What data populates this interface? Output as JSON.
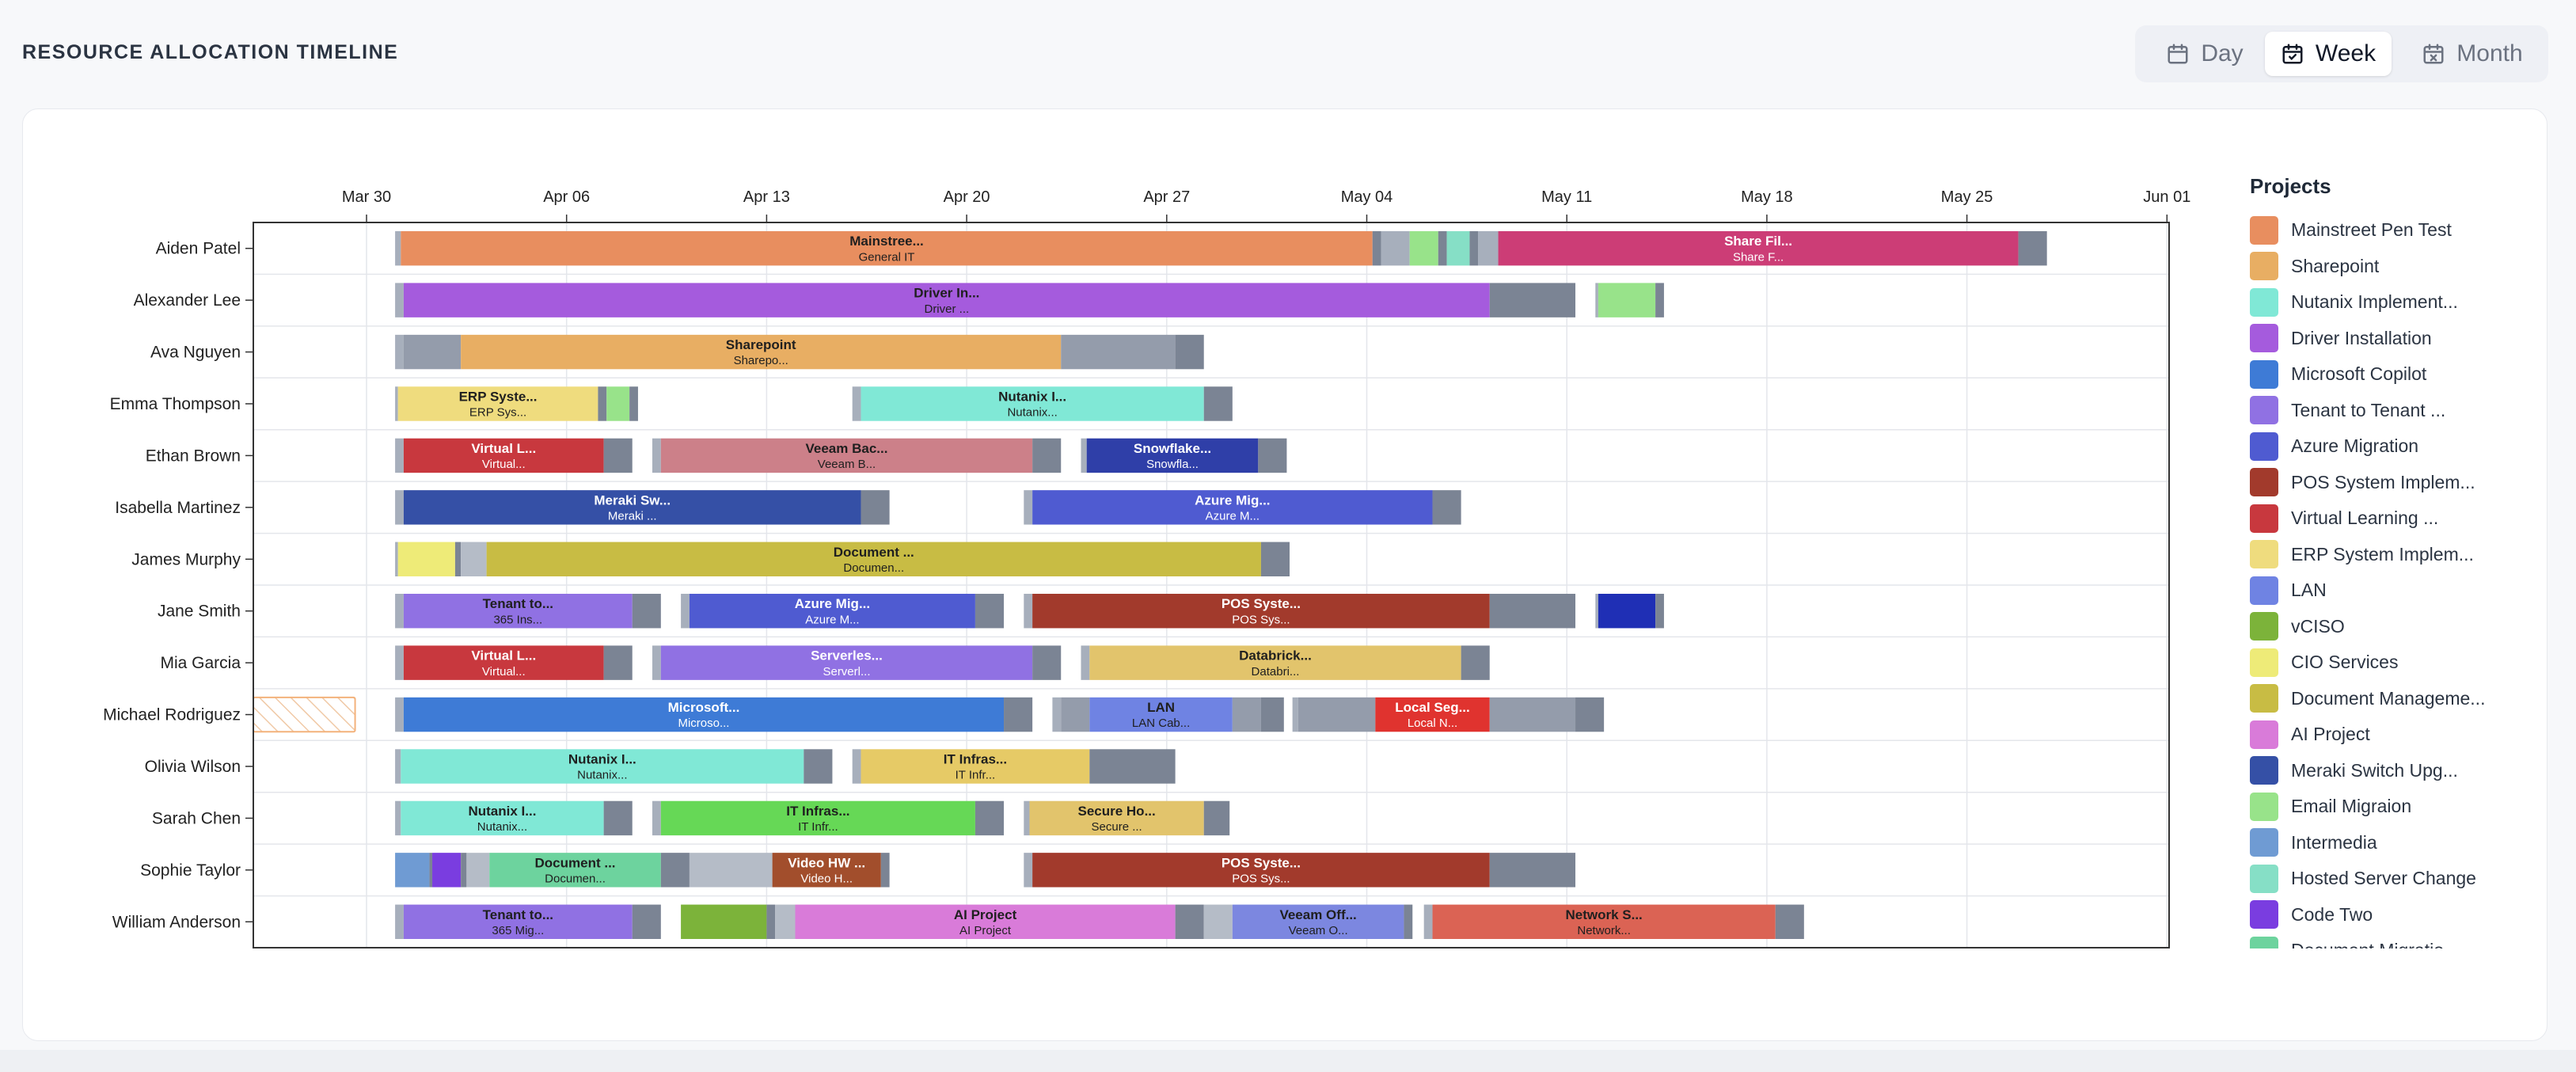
{
  "header": {
    "title": "RESOURCE ALLOCATION TIMELINE"
  },
  "view_toggle": {
    "selected": "Week",
    "options": [
      {
        "label": "Day",
        "icon": "calendar-icon"
      },
      {
        "label": "Week",
        "icon": "calendar-week-icon"
      },
      {
        "label": "Month",
        "icon": "calendar-month-icon"
      }
    ]
  },
  "timeline": {
    "date_ticks": [
      "Mar 30",
      "Apr 06",
      "Apr 13",
      "Apr 20",
      "Apr 27",
      "May 04",
      "May 11",
      "May 18",
      "May 25",
      "Jun 01"
    ],
    "rows": [
      {
        "name": "Aiden Patel",
        "bars": [
          {
            "start": 1.0,
            "end": 1.2,
            "color": "#a7afbc"
          },
          {
            "start": 1.2,
            "end": 35.2,
            "color": "#e88e5f",
            "title": "Mainstree...",
            "sub": "General IT"
          },
          {
            "start": 35.2,
            "end": 35.5,
            "color": "#7b8494"
          },
          {
            "start": 35.5,
            "end": 36.5,
            "color": "#a7afbc"
          },
          {
            "start": 36.5,
            "end": 37.5,
            "color": "#98e38a"
          },
          {
            "start": 37.5,
            "end": 37.8,
            "color": "#7b8494"
          },
          {
            "start": 37.8,
            "end": 38.6,
            "color": "#86dfc6"
          },
          {
            "start": 38.6,
            "end": 38.9,
            "color": "#7b8494"
          },
          {
            "start": 38.9,
            "end": 39.6,
            "color": "#a7afbc"
          },
          {
            "start": 39.6,
            "end": 57.8,
            "color": "#cc3d76",
            "title": "Share Fil...",
            "sub": "Share F...",
            "light": true
          },
          {
            "start": 57.8,
            "end": 58.8,
            "color": "#7b8494"
          }
        ]
      },
      {
        "name": "Alexander Lee",
        "bars": [
          {
            "start": 1.0,
            "end": 1.3,
            "color": "#a7afbc"
          },
          {
            "start": 1.3,
            "end": 39.3,
            "color": "#a55bdd",
            "title": "Driver In...",
            "sub": "Driver ..."
          },
          {
            "start": 39.3,
            "end": 42.3,
            "color": "#7b8494"
          },
          {
            "start": 43.0,
            "end": 43.1,
            "color": "#a7afbc"
          },
          {
            "start": 43.1,
            "end": 45.1,
            "color": "#98e38a"
          },
          {
            "start": 45.1,
            "end": 45.4,
            "color": "#7b8494"
          }
        ]
      },
      {
        "name": "Ava Nguyen",
        "bars": [
          {
            "start": 1.0,
            "end": 1.3,
            "color": "#a7afbc"
          },
          {
            "start": 1.3,
            "end": 3.3,
            "color": "#949cab"
          },
          {
            "start": 3.3,
            "end": 24.3,
            "color": "#e8ae63",
            "title": "Sharepoint",
            "sub": "Sharepo..."
          },
          {
            "start": 24.3,
            "end": 28.3,
            "color": "#949cab"
          },
          {
            "start": 28.3,
            "end": 29.3,
            "color": "#7b8494"
          }
        ]
      },
      {
        "name": "Emma Thompson",
        "bars": [
          {
            "start": 1.0,
            "end": 1.1,
            "color": "#a7afbc"
          },
          {
            "start": 1.1,
            "end": 8.1,
            "color": "#efdc7e",
            "title": "ERP Syste...",
            "sub": "ERP Sys..."
          },
          {
            "start": 8.1,
            "end": 8.4,
            "color": "#7b8494"
          },
          {
            "start": 8.4,
            "end": 9.2,
            "color": "#98e38a"
          },
          {
            "start": 9.2,
            "end": 9.5,
            "color": "#7b8494"
          },
          {
            "start": 17.0,
            "end": 17.3,
            "color": "#a7afbc"
          },
          {
            "start": 17.3,
            "end": 29.3,
            "color": "#80e8d6",
            "title": "Nutanix I...",
            "sub": "Nutanix..."
          },
          {
            "start": 29.3,
            "end": 30.3,
            "color": "#7b8494"
          }
        ]
      },
      {
        "name": "Ethan Brown",
        "bars": [
          {
            "start": 1.0,
            "end": 1.3,
            "color": "#a7afbc"
          },
          {
            "start": 1.3,
            "end": 8.3,
            "color": "#c8383e",
            "title": "Virtual L...",
            "sub": "Virtual...",
            "light": true
          },
          {
            "start": 8.3,
            "end": 9.3,
            "color": "#7b8494"
          },
          {
            "start": 10.0,
            "end": 10.3,
            "color": "#a7afbc"
          },
          {
            "start": 10.3,
            "end": 23.3,
            "color": "#cc8089",
            "title": "Veeam Bac...",
            "sub": "Veeam B..."
          },
          {
            "start": 23.3,
            "end": 24.3,
            "color": "#7b8494"
          },
          {
            "start": 25.0,
            "end": 25.2,
            "color": "#a7afbc"
          },
          {
            "start": 25.2,
            "end": 31.2,
            "color": "#2f3fa8",
            "title": "Snowflake...",
            "sub": "Snowfla...",
            "light": true
          },
          {
            "start": 31.2,
            "end": 32.2,
            "color": "#7b8494"
          }
        ]
      },
      {
        "name": "Isabella Martinez",
        "bars": [
          {
            "start": 1.0,
            "end": 1.3,
            "color": "#a7afbc"
          },
          {
            "start": 1.3,
            "end": 17.3,
            "color": "#3550a6",
            "title": "Meraki Sw...",
            "sub": "Meraki ...",
            "light": true
          },
          {
            "start": 17.3,
            "end": 18.3,
            "color": "#7b8494"
          },
          {
            "start": 23.0,
            "end": 23.3,
            "color": "#a7afbc"
          },
          {
            "start": 23.3,
            "end": 37.3,
            "color": "#4f5bd1",
            "title": "Azure Mig...",
            "sub": "Azure M...",
            "light": true
          },
          {
            "start": 37.3,
            "end": 38.3,
            "color": "#7b8494"
          }
        ]
      },
      {
        "name": "James Murphy",
        "bars": [
          {
            "start": 1.0,
            "end": 1.1,
            "color": "#a7afbc"
          },
          {
            "start": 1.1,
            "end": 3.1,
            "color": "#eeeb78"
          },
          {
            "start": 3.1,
            "end": 3.3,
            "color": "#7b8494"
          },
          {
            "start": 3.3,
            "end": 4.2,
            "color": "#b5bcc7"
          },
          {
            "start": 4.2,
            "end": 31.3,
            "color": "#c8bc44",
            "title": "Document ...",
            "sub": "Documen..."
          },
          {
            "start": 31.3,
            "end": 32.3,
            "color": "#7b8494"
          }
        ]
      },
      {
        "name": "Jane Smith",
        "bars": [
          {
            "start": 1.0,
            "end": 1.3,
            "color": "#a7afbc"
          },
          {
            "start": 1.3,
            "end": 9.3,
            "color": "#9071e3",
            "title": "Tenant to...",
            "sub": "365 Ins..."
          },
          {
            "start": 9.3,
            "end": 10.3,
            "color": "#7b8494"
          },
          {
            "start": 11.0,
            "end": 11.3,
            "color": "#a7afbc"
          },
          {
            "start": 11.3,
            "end": 21.3,
            "color": "#4f5bd1",
            "title": "Azure Mig...",
            "sub": "Azure M...",
            "light": true
          },
          {
            "start": 21.3,
            "end": 22.3,
            "color": "#7b8494"
          },
          {
            "start": 23.0,
            "end": 23.3,
            "color": "#a7afbc"
          },
          {
            "start": 23.3,
            "end": 39.3,
            "color": "#a23a2c",
            "title": "POS Syste...",
            "sub": "POS Sys...",
            "light": true
          },
          {
            "start": 39.3,
            "end": 42.3,
            "color": "#7b8494"
          },
          {
            "start": 43.0,
            "end": 43.1,
            "color": "#a7afbc"
          },
          {
            "start": 43.1,
            "end": 45.1,
            "color": "#1f2fb5"
          },
          {
            "start": 45.1,
            "end": 45.4,
            "color": "#7b8494"
          }
        ]
      },
      {
        "name": "Mia Garcia",
        "bars": [
          {
            "start": 1.0,
            "end": 1.3,
            "color": "#a7afbc"
          },
          {
            "start": 1.3,
            "end": 8.3,
            "color": "#c8383e",
            "title": "Virtual L...",
            "sub": "Virtual...",
            "light": true
          },
          {
            "start": 8.3,
            "end": 9.3,
            "color": "#7b8494"
          },
          {
            "start": 10.0,
            "end": 10.3,
            "color": "#a7afbc"
          },
          {
            "start": 10.3,
            "end": 23.3,
            "color": "#9071e3",
            "title": "Serverles...",
            "sub": "Serverl...",
            "light": true
          },
          {
            "start": 23.3,
            "end": 24.3,
            "color": "#7b8494"
          },
          {
            "start": 25.0,
            "end": 25.3,
            "color": "#a7afbc"
          },
          {
            "start": 25.3,
            "end": 38.3,
            "color": "#e2c46c",
            "title": "Databrick...",
            "sub": "Databri..."
          },
          {
            "start": 38.3,
            "end": 39.3,
            "color": "#7b8494"
          }
        ]
      },
      {
        "name": "Michael Rodriguez",
        "placeholder": {
          "start": -4.0,
          "end": -0.4
        },
        "bars": [
          {
            "start": 1.0,
            "end": 1.3,
            "color": "#a7afbc"
          },
          {
            "start": 1.3,
            "end": 22.3,
            "color": "#3e7bd6",
            "title": "Microsoft...",
            "sub": "Microso...",
            "light": true
          },
          {
            "start": 22.3,
            "end": 23.3,
            "color": "#7b8494"
          },
          {
            "start": 24.0,
            "end": 24.3,
            "color": "#a7afbc"
          },
          {
            "start": 24.3,
            "end": 25.3,
            "color": "#949cab"
          },
          {
            "start": 25.3,
            "end": 30.3,
            "color": "#6f83e3",
            "title": "LAN",
            "sub": "LAN Cab..."
          },
          {
            "start": 30.3,
            "end": 31.3,
            "color": "#949cab"
          },
          {
            "start": 31.3,
            "end": 32.1,
            "color": "#7b8494"
          },
          {
            "start": 32.4,
            "end": 32.6,
            "color": "#a7afbc"
          },
          {
            "start": 32.6,
            "end": 35.3,
            "color": "#949cab"
          },
          {
            "start": 35.3,
            "end": 39.3,
            "color": "#e0332f",
            "title": "Local Seg...",
            "sub": "Local N...",
            "light": true
          },
          {
            "start": 39.3,
            "end": 42.3,
            "color": "#949cab"
          },
          {
            "start": 42.3,
            "end": 43.3,
            "color": "#7b8494"
          }
        ]
      },
      {
        "name": "Olivia Wilson",
        "bars": [
          {
            "start": 1.0,
            "end": 1.2,
            "color": "#a7afbc"
          },
          {
            "start": 1.2,
            "end": 15.3,
            "color": "#80e8d6",
            "title": "Nutanix I...",
            "sub": "Nutanix..."
          },
          {
            "start": 15.3,
            "end": 16.3,
            "color": "#7b8494"
          },
          {
            "start": 17.0,
            "end": 17.3,
            "color": "#a7afbc"
          },
          {
            "start": 17.3,
            "end": 25.3,
            "color": "#e6ca66",
            "title": "IT Infras...",
            "sub": "IT Infr..."
          },
          {
            "start": 25.3,
            "end": 28.3,
            "color": "#7b8494"
          }
        ]
      },
      {
        "name": "Sarah Chen",
        "bars": [
          {
            "start": 1.0,
            "end": 1.2,
            "color": "#a7afbc"
          },
          {
            "start": 1.2,
            "end": 8.3,
            "color": "#80e8d6",
            "title": "Nutanix I...",
            "sub": "Nutanix..."
          },
          {
            "start": 8.3,
            "end": 9.3,
            "color": "#7b8494"
          },
          {
            "start": 10.0,
            "end": 10.3,
            "color": "#a7afbc"
          },
          {
            "start": 10.3,
            "end": 21.3,
            "color": "#66d856",
            "title": "IT Infras...",
            "sub": "IT Infr..."
          },
          {
            "start": 21.3,
            "end": 22.3,
            "color": "#7b8494"
          },
          {
            "start": 23.0,
            "end": 23.2,
            "color": "#a7afbc"
          },
          {
            "start": 23.2,
            "end": 29.3,
            "color": "#e2c46c",
            "title": "Secure Ho...",
            "sub": "Secure ..."
          },
          {
            "start": 29.3,
            "end": 30.2,
            "color": "#7b8494"
          }
        ]
      },
      {
        "name": "Sophie Taylor",
        "bars": [
          {
            "start": 1.0,
            "end": 2.2,
            "color": "#6f9bd3"
          },
          {
            "start": 2.2,
            "end": 2.3,
            "color": "#7b8494"
          },
          {
            "start": 2.3,
            "end": 3.3,
            "color": "#7a3de0"
          },
          {
            "start": 3.3,
            "end": 3.5,
            "color": "#7b8494"
          },
          {
            "start": 3.5,
            "end": 4.3,
            "color": "#b5bcc7"
          },
          {
            "start": 4.3,
            "end": 10.3,
            "color": "#6dd39e",
            "title": "Document ...",
            "sub": "Documen..."
          },
          {
            "start": 10.3,
            "end": 11.3,
            "color": "#7b8494"
          },
          {
            "start": 11.3,
            "end": 14.2,
            "color": "#b5bcc7"
          },
          {
            "start": 14.2,
            "end": 18.0,
            "color": "#a24e2c",
            "title": "Video HW ...",
            "sub": "Video H...",
            "light": true
          },
          {
            "start": 18.0,
            "end": 18.3,
            "color": "#7b8494"
          },
          {
            "start": 23.0,
            "end": 23.3,
            "color": "#a7afbc"
          },
          {
            "start": 23.3,
            "end": 39.3,
            "color": "#a23a2c",
            "title": "POS Syste...",
            "sub": "POS Sys...",
            "light": true
          },
          {
            "start": 39.3,
            "end": 42.3,
            "color": "#7b8494"
          }
        ]
      },
      {
        "name": "William Anderson",
        "bars": [
          {
            "start": 1.0,
            "end": 1.3,
            "color": "#a7afbc"
          },
          {
            "start": 1.3,
            "end": 9.3,
            "color": "#9071e3",
            "title": "Tenant to...",
            "sub": "365 Mig..."
          },
          {
            "start": 9.3,
            "end": 10.3,
            "color": "#7b8494"
          },
          {
            "start": 11.0,
            "end": 14.0,
            "color": "#7cb33a"
          },
          {
            "start": 14.0,
            "end": 14.3,
            "color": "#7b8494"
          },
          {
            "start": 14.3,
            "end": 15.0,
            "color": "#b5bcc7"
          },
          {
            "start": 15.0,
            "end": 28.3,
            "color": "#d97bd9",
            "title": "AI Project",
            "sub": "AI Project"
          },
          {
            "start": 28.3,
            "end": 29.3,
            "color": "#7b8494"
          },
          {
            "start": 29.3,
            "end": 30.3,
            "color": "#b5bcc7"
          },
          {
            "start": 30.3,
            "end": 36.3,
            "color": "#7c87e0",
            "title": "Veeam Off...",
            "sub": "Veeam O..."
          },
          {
            "start": 36.3,
            "end": 36.6,
            "color": "#7b8494"
          },
          {
            "start": 37.0,
            "end": 37.3,
            "color": "#a7afbc"
          },
          {
            "start": 37.3,
            "end": 49.3,
            "color": "#db6354",
            "title": "Network S...",
            "sub": "Network..."
          },
          {
            "start": 49.3,
            "end": 50.3,
            "color": "#7b8494"
          }
        ]
      }
    ]
  },
  "legend": {
    "title": "Projects",
    "items": [
      {
        "label": "Mainstreet Pen Test",
        "color": "#e88e5f"
      },
      {
        "label": "Sharepoint",
        "color": "#e8ae63"
      },
      {
        "label": "Nutanix Implement...",
        "color": "#80e8d6"
      },
      {
        "label": "Driver Installation",
        "color": "#a55bdd"
      },
      {
        "label": "Microsoft Copilot",
        "color": "#3e7bd6"
      },
      {
        "label": "Tenant to Tenant ...",
        "color": "#9071e3"
      },
      {
        "label": "Azure Migration",
        "color": "#4f5bd1"
      },
      {
        "label": "POS System Implem...",
        "color": "#a23a2c"
      },
      {
        "label": "Virtual Learning ...",
        "color": "#c8383e"
      },
      {
        "label": "ERP System Implem...",
        "color": "#efdc7e"
      },
      {
        "label": "LAN",
        "color": "#6f83e3"
      },
      {
        "label": "vCISO",
        "color": "#7cb33a"
      },
      {
        "label": "CIO Services",
        "color": "#eeeb78"
      },
      {
        "label": "Document Manageme...",
        "color": "#c8bc44"
      },
      {
        "label": "AI Project",
        "color": "#d97bd9"
      },
      {
        "label": "Meraki Switch Upg...",
        "color": "#3550a6"
      },
      {
        "label": "Email Migraion",
        "color": "#98e38a"
      },
      {
        "label": "Intermedia",
        "color": "#6f9bd3"
      },
      {
        "label": "Hosted Server Change",
        "color": "#86dfc6"
      },
      {
        "label": "Code Two",
        "color": "#7a3de0"
      },
      {
        "label": "Document Migratio...",
        "color": "#6dd39e"
      }
    ]
  }
}
